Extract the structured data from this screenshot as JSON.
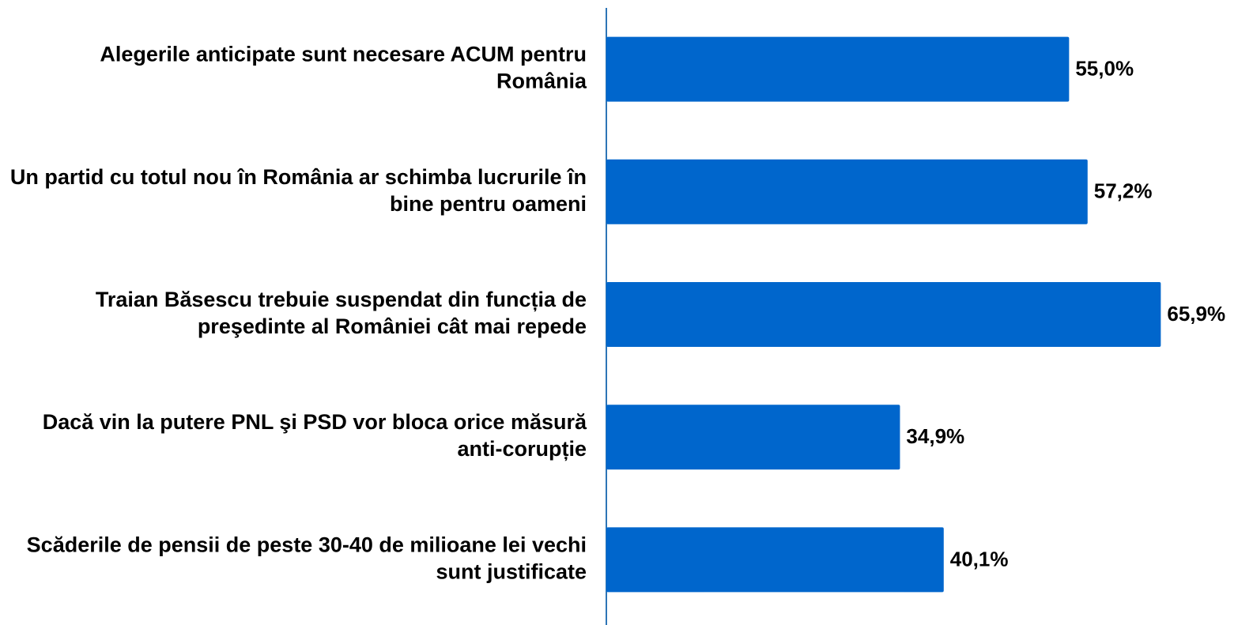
{
  "chart_data": {
    "type": "barh",
    "categories": [
      "Alegerile anticipate sunt necesare ACUM pentru România",
      "Un partid cu totul nou în România ar schimba lucrurile în bine pentru oameni",
      "Traian Băsescu trebuie suspendat din funcția de preşedinte al României cât mai repede",
      "Dacă vin la putere PNL şi PSD vor bloca orice măsură anti-corupție",
      "Scăderile de pensii de peste 30-40 de milioane lei vechi sunt justificate"
    ],
    "values": [
      55.0,
      57.2,
      65.9,
      34.9,
      40.1
    ],
    "value_labels": [
      "55,0%",
      "57,2%",
      "65,9%",
      "34,9%",
      "40,1%"
    ],
    "color": "#0066cc",
    "xlim": [
      0,
      70
    ]
  }
}
